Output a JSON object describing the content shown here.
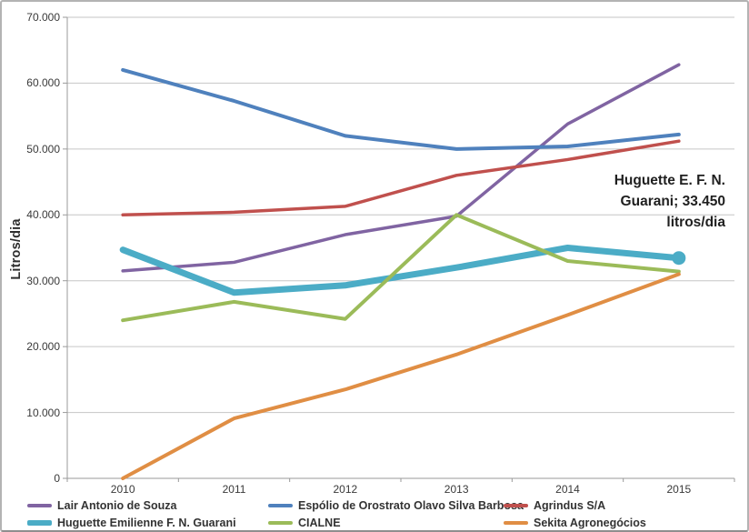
{
  "chart_data": {
    "type": "line",
    "title": "",
    "xlabel": "",
    "ylabel": "Litros/dia",
    "categories": [
      "2010",
      "2011",
      "2012",
      "2013",
      "2014",
      "2015"
    ],
    "ylim": [
      0,
      70000
    ],
    "y_tick_step": 10000,
    "y_tick_labels": [
      "0",
      "10.000",
      "20.000",
      "30.000",
      "40.000",
      "50.000",
      "60.000",
      "70.000"
    ],
    "grid": true,
    "legend_position": "bottom",
    "series": [
      {
        "name": "Lair Antonio de Souza",
        "color": "#8064A2",
        "width": 3.5,
        "values": [
          31500,
          32800,
          37000,
          39800,
          53800,
          62800
        ]
      },
      {
        "name": "Espólio de Orostrato Olavo Silva Barbosa",
        "color": "#4F81BD",
        "width": 4,
        "values": [
          62000,
          57300,
          52000,
          50000,
          50400,
          52200
        ]
      },
      {
        "name": "Agrindus S/A",
        "color": "#C0504D",
        "width": 3.5,
        "values": [
          40000,
          40400,
          41300,
          46000,
          48400,
          51200
        ]
      },
      {
        "name": "Huguette Emilienne F. N. Guarani",
        "color": "#4BACC6",
        "width": 7,
        "end_marker": true,
        "values": [
          34700,
          28200,
          29300,
          32000,
          35000,
          33450
        ]
      },
      {
        "name": "CIALNE",
        "color": "#9BBB59",
        "width": 4,
        "values": [
          24000,
          26800,
          24200,
          40000,
          33000,
          31400
        ]
      },
      {
        "name": "Sekita Agronegócios",
        "color": "#E08E44",
        "width": 4,
        "values": [
          0,
          9100,
          13500,
          18800,
          24800,
          31000
        ]
      }
    ]
  },
  "annotation": {
    "lines": [
      "Huguette E. F. N.",
      "Guarani; 33.450",
      "litros/dia"
    ]
  },
  "colors": {
    "gridline": "#C6C6C6",
    "axis": "#9A9A9A",
    "tick_text": "#393939",
    "annotation_text": "#1F1F1F",
    "background": "#FFFFFF"
  }
}
